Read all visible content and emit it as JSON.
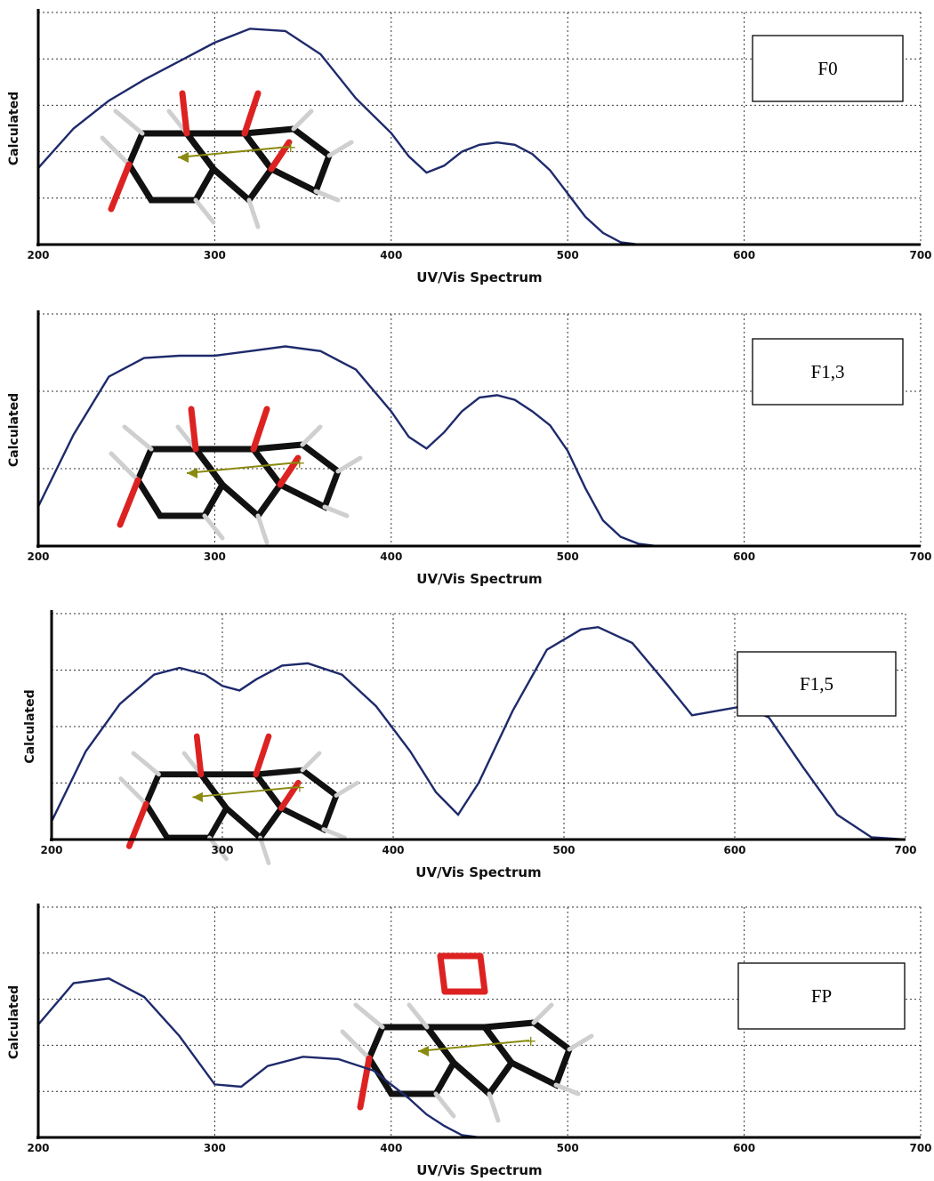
{
  "chart_data": [
    {
      "type": "line",
      "legend": "F0",
      "xlabel": "UV/Vis Spectrum",
      "ylabel": "Calculated",
      "xlim": [
        200,
        700
      ],
      "ylim": [
        0,
        1
      ],
      "x_ticks": [
        "200",
        "300",
        "400",
        "500",
        "600",
        "700"
      ],
      "grid": true,
      "series": [
        {
          "x": [
            200,
            220,
            240,
            260,
            280,
            300,
            320,
            340,
            360,
            380,
            400,
            410,
            420,
            430,
            440,
            450,
            460,
            470,
            480,
            490,
            500,
            510,
            520,
            530,
            540,
            560,
            600,
            650,
            700
          ],
          "y": [
            0.33,
            0.5,
            0.62,
            0.71,
            0.79,
            0.87,
            0.93,
            0.92,
            0.82,
            0.63,
            0.48,
            0.38,
            0.31,
            0.34,
            0.4,
            0.43,
            0.44,
            0.43,
            0.39,
            0.32,
            0.22,
            0.12,
            0.05,
            0.01,
            0.0,
            0.0,
            0.0,
            0.0,
            0.0
          ]
        }
      ]
    },
    {
      "type": "line",
      "legend": "F1,3",
      "xlabel": "UV/Vis Spectrum",
      "ylabel": "Calculated",
      "xlim": [
        200,
        700
      ],
      "ylim": [
        0,
        1
      ],
      "x_ticks": [
        "200",
        "300",
        "400",
        "500",
        "600",
        "700"
      ],
      "grid": true,
      "series": [
        {
          "x": [
            200,
            220,
            240,
            260,
            280,
            300,
            320,
            340,
            360,
            380,
            400,
            410,
            420,
            430,
            440,
            450,
            460,
            470,
            480,
            490,
            500,
            510,
            520,
            530,
            540,
            550,
            600,
            650,
            700
          ],
          "y": [
            0.17,
            0.48,
            0.73,
            0.81,
            0.82,
            0.82,
            0.84,
            0.86,
            0.84,
            0.76,
            0.58,
            0.47,
            0.42,
            0.49,
            0.58,
            0.64,
            0.65,
            0.63,
            0.58,
            0.52,
            0.41,
            0.25,
            0.11,
            0.04,
            0.01,
            0.0,
            0.0,
            0.0,
            0.0
          ]
        }
      ]
    },
    {
      "type": "line",
      "legend": "F1,5",
      "xlabel": "UV/Vis Spectrum",
      "ylabel": "Calculated",
      "xlim": [
        200,
        700
      ],
      "ylim": [
        0,
        1
      ],
      "x_ticks": [
        "200",
        "300",
        "400",
        "500",
        "600",
        "700"
      ],
      "grid": true,
      "series": [
        {
          "x": [
            200,
            220,
            240,
            260,
            275,
            290,
            300,
            310,
            320,
            335,
            350,
            370,
            390,
            410,
            425,
            438,
            450,
            470,
            490,
            510,
            520,
            540,
            560,
            575,
            590,
            605,
            620,
            640,
            660,
            680,
            700
          ],
          "y": [
            0.08,
            0.39,
            0.6,
            0.73,
            0.76,
            0.73,
            0.68,
            0.66,
            0.71,
            0.77,
            0.78,
            0.73,
            0.59,
            0.39,
            0.21,
            0.11,
            0.25,
            0.57,
            0.84,
            0.93,
            0.94,
            0.87,
            0.69,
            0.55,
            0.57,
            0.59,
            0.54,
            0.32,
            0.11,
            0.01,
            0.0
          ]
        }
      ]
    },
    {
      "type": "line",
      "legend": "FP",
      "xlabel": "UV/Vis Spectrum",
      "ylabel": "Calculated",
      "xlim": [
        200,
        700
      ],
      "ylim": [
        0,
        1
      ],
      "x_ticks": [
        "200",
        "300",
        "400",
        "500",
        "600",
        "700"
      ],
      "grid": true,
      "series": [
        {
          "x": [
            200,
            220,
            240,
            260,
            280,
            300,
            315,
            330,
            350,
            370,
            390,
            410,
            420,
            430,
            440,
            450,
            460,
            500,
            600,
            700
          ],
          "y": [
            0.49,
            0.67,
            0.69,
            0.61,
            0.44,
            0.23,
            0.22,
            0.31,
            0.35,
            0.34,
            0.29,
            0.17,
            0.1,
            0.05,
            0.01,
            0.0,
            0.0,
            0.0,
            0.0,
            0.0
          ]
        }
      ]
    }
  ]
}
